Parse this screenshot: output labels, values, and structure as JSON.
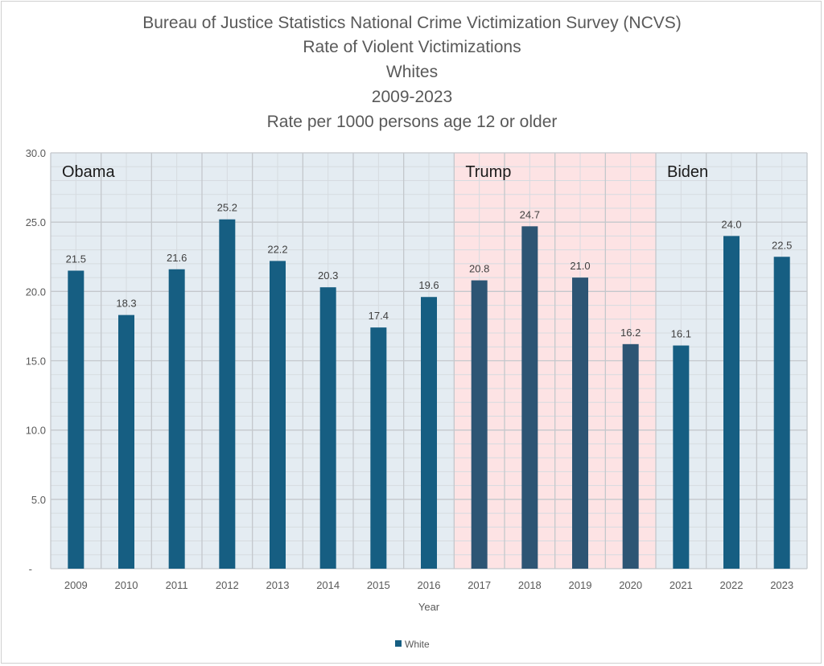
{
  "chart_data": {
    "type": "bar",
    "title_lines": [
      "Bureau of Justice Statistics National Crime Victimization Survey (NCVS)",
      "Rate of Violent Victimizations",
      "Whites",
      "2009-2023",
      "Rate per 1000 persons age 12 or older"
    ],
    "xlabel": "Year",
    "ylabel": "",
    "ylim": [
      0,
      30
    ],
    "yticks": [
      "-",
      "5.0",
      "10.0",
      "15.0",
      "20.0",
      "25.0",
      "30.0"
    ],
    "ytick_values": [
      0,
      5,
      10,
      15,
      20,
      25,
      30
    ],
    "grid": true,
    "legend_position": "bottom",
    "categories": [
      "2009",
      "2010",
      "2011",
      "2012",
      "2013",
      "2014",
      "2015",
      "2016",
      "2017",
      "2018",
      "2019",
      "2020",
      "2021",
      "2022",
      "2023"
    ],
    "series": [
      {
        "name": "White",
        "values": [
          21.5,
          18.3,
          21.6,
          25.2,
          22.2,
          20.3,
          17.4,
          19.6,
          20.8,
          24.7,
          21.0,
          16.2,
          16.1,
          24.0,
          22.5
        ],
        "color": "#165e82"
      }
    ],
    "data_labels": [
      "21.5",
      "18.3",
      "21.6",
      "25.2",
      "22.2",
      "20.3",
      "17.4",
      "19.6",
      "20.8",
      "24.7",
      "21.0",
      "16.2",
      "16.1",
      "24.0",
      "22.5"
    ],
    "regions": [
      {
        "label": "Obama",
        "from": "2009",
        "to": "2016",
        "background": "#e4ecf2",
        "bar_color": "#165e82"
      },
      {
        "label": "Trump",
        "from": "2017",
        "to": "2020",
        "background": "#fde3e4",
        "bar_color": "#2d5574"
      },
      {
        "label": "Biden",
        "from": "2021",
        "to": "2023",
        "background": "#e4ecf2",
        "bar_color": "#165e82"
      }
    ]
  }
}
